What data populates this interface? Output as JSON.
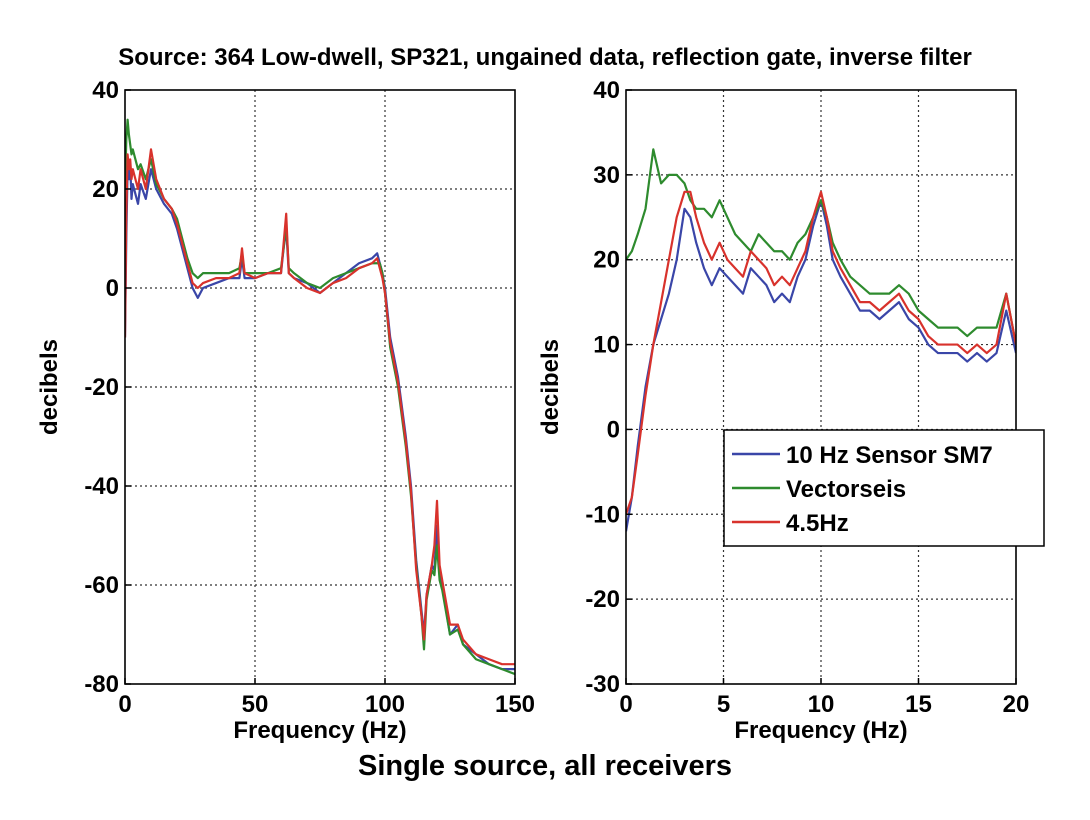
{
  "title": "Source: 364 Low-dwell, SP321, ungained data, reflection gate, inverse filter",
  "caption": "Single source, all receivers",
  "colors": {
    "10 Hz Sensor SM7": "#3a46a8",
    "Vectorseis": "#2e8b2e",
    "4.5Hz": "#d8322c"
  },
  "chart_data": [
    {
      "type": "line",
      "xlabel": "Frequency (Hz)",
      "ylabel": "decibels",
      "xlim": [
        0,
        150
      ],
      "ylim": [
        -80,
        40
      ],
      "xticks": [
        0,
        50,
        100,
        150
      ],
      "yticks": [
        -80,
        -60,
        -40,
        -20,
        0,
        20,
        40
      ],
      "grid": true,
      "series": [
        {
          "name": "10 Hz Sensor SM7",
          "x": [
            0,
            0.5,
            1,
            1.5,
            2,
            2.5,
            3,
            4,
            5,
            6,
            8,
            10,
            12,
            15,
            18,
            20,
            22,
            24,
            26,
            28,
            30,
            35,
            40,
            44,
            45,
            46,
            50,
            55,
            60,
            61,
            62,
            63,
            65,
            70,
            75,
            80,
            85,
            90,
            95,
            97,
            98,
            99,
            100,
            102,
            105,
            108,
            110,
            112,
            114,
            115,
            116,
            118,
            119,
            120,
            121,
            122,
            125,
            128,
            130,
            135,
            140,
            145,
            150
          ],
          "y": [
            -10,
            10,
            24,
            22,
            25,
            18,
            21,
            19,
            17,
            21,
            18,
            24,
            20,
            17,
            15,
            12,
            8,
            4,
            0,
            -2,
            0,
            1,
            2,
            2,
            6,
            2,
            2,
            3,
            3,
            8,
            12,
            3,
            2,
            1,
            -1,
            1,
            3,
            5,
            6,
            7,
            5,
            3,
            0,
            -10,
            -18,
            -30,
            -40,
            -55,
            -65,
            -70,
            -62,
            -56,
            -57,
            -48,
            -58,
            -60,
            -70,
            -68,
            -72,
            -74,
            -76,
            -77,
            -77
          ]
        },
        {
          "name": "Vectorseis",
          "x": [
            0,
            0.5,
            1,
            1.5,
            2,
            2.5,
            3,
            4,
            5,
            6,
            8,
            10,
            12,
            15,
            18,
            20,
            22,
            24,
            26,
            28,
            30,
            35,
            40,
            44,
            45,
            46,
            50,
            55,
            60,
            61,
            62,
            63,
            65,
            70,
            75,
            80,
            85,
            90,
            95,
            97,
            98,
            99,
            100,
            102,
            105,
            108,
            110,
            112,
            114,
            115,
            116,
            118,
            119,
            120,
            121,
            122,
            125,
            128,
            130,
            135,
            140,
            145,
            150
          ],
          "y": [
            20,
            30,
            34,
            31,
            29,
            27,
            28,
            26,
            24,
            25,
            22,
            26,
            21,
            18,
            16,
            14,
            10,
            6,
            3,
            2,
            3,
            3,
            3,
            4,
            7,
            3,
            3,
            3,
            4,
            8,
            13,
            4,
            3,
            1,
            0,
            2,
            3,
            4,
            5,
            5,
            5,
            3,
            -1,
            -12,
            -20,
            -32,
            -42,
            -56,
            -66,
            -73,
            -63,
            -57,
            -58,
            -52,
            -59,
            -61,
            -70,
            -69,
            -72,
            -75,
            -76,
            -77,
            -78
          ]
        },
        {
          "name": "4.5Hz",
          "x": [
            0,
            0.5,
            1,
            1.5,
            2,
            2.5,
            3,
            4,
            5,
            6,
            8,
            10,
            12,
            15,
            18,
            20,
            22,
            24,
            26,
            28,
            30,
            35,
            40,
            44,
            45,
            46,
            50,
            55,
            60,
            61,
            62,
            63,
            65,
            70,
            75,
            80,
            85,
            90,
            95,
            97,
            98,
            99,
            100,
            102,
            105,
            108,
            110,
            112,
            114,
            115,
            116,
            118,
            119,
            120,
            121,
            122,
            125,
            128,
            130,
            135,
            140,
            145,
            150
          ],
          "y": [
            -10,
            15,
            27,
            24,
            26,
            22,
            24,
            22,
            20,
            24,
            20,
            28,
            22,
            18,
            16,
            13,
            9,
            5,
            1,
            0,
            1,
            2,
            2,
            3,
            8,
            3,
            2,
            3,
            3,
            9,
            15,
            3,
            2,
            0,
            -1,
            1,
            2,
            4,
            5,
            6,
            4,
            2,
            -1,
            -11,
            -19,
            -31,
            -41,
            -57,
            -66,
            -71,
            -62,
            -56,
            -52,
            -43,
            -56,
            -59,
            -68,
            -68,
            -71,
            -74,
            -75,
            -76,
            -76
          ]
        }
      ]
    },
    {
      "type": "line",
      "xlabel": "Frequency (Hz)",
      "ylabel": "decibels",
      "xlim": [
        0,
        20
      ],
      "ylim": [
        -30,
        40
      ],
      "xticks": [
        0,
        5,
        10,
        15,
        20
      ],
      "yticks": [
        -30,
        -20,
        -10,
        0,
        10,
        20,
        30,
        40
      ],
      "grid": true,
      "legend": {
        "position": "lower-right",
        "entries": [
          "10 Hz Sensor SM7",
          "Vectorseis",
          "4.5Hz"
        ]
      },
      "series": [
        {
          "name": "10 Hz Sensor SM7",
          "x": [
            0,
            0.3,
            0.6,
            1,
            1.4,
            1.8,
            2.2,
            2.6,
            3,
            3.3,
            3.6,
            4,
            4.4,
            4.8,
            5.2,
            5.6,
            6,
            6.4,
            6.8,
            7.2,
            7.6,
            8,
            8.4,
            8.8,
            9.2,
            9.6,
            10,
            10.3,
            10.6,
            11,
            11.5,
            12,
            12.5,
            13,
            13.5,
            14,
            14.5,
            15,
            15.5,
            16,
            16.5,
            17,
            17.5,
            18,
            18.5,
            19,
            19.5,
            20
          ],
          "y": [
            -12,
            -8,
            -2,
            5,
            10,
            13,
            16,
            20,
            26,
            25,
            22,
            19,
            17,
            19,
            18,
            17,
            16,
            19,
            18,
            17,
            15,
            16,
            15,
            18,
            20,
            24,
            27,
            24,
            20,
            18,
            16,
            14,
            14,
            13,
            14,
            15,
            13,
            12,
            10,
            9,
            9,
            9,
            8,
            9,
            8,
            9,
            14,
            9
          ]
        },
        {
          "name": "Vectorseis",
          "x": [
            0,
            0.3,
            0.6,
            1,
            1.4,
            1.8,
            2.2,
            2.6,
            3,
            3.3,
            3.6,
            4,
            4.4,
            4.8,
            5.2,
            5.6,
            6,
            6.4,
            6.8,
            7.2,
            7.6,
            8,
            8.4,
            8.8,
            9.2,
            9.6,
            10,
            10.3,
            10.6,
            11,
            11.5,
            12,
            12.5,
            13,
            13.5,
            14,
            14.5,
            15,
            15.5,
            16,
            16.5,
            17,
            17.5,
            18,
            18.5,
            19,
            19.5,
            20
          ],
          "y": [
            20,
            21,
            23,
            26,
            33,
            29,
            30,
            30,
            29,
            27,
            26,
            26,
            25,
            27,
            25,
            23,
            22,
            21,
            23,
            22,
            21,
            21,
            20,
            22,
            23,
            25,
            27,
            25,
            22,
            20,
            18,
            17,
            16,
            16,
            16,
            17,
            16,
            14,
            13,
            12,
            12,
            12,
            11,
            12,
            12,
            12,
            16,
            10
          ]
        },
        {
          "name": "4.5Hz",
          "x": [
            0,
            0.3,
            0.6,
            1,
            1.4,
            1.8,
            2.2,
            2.6,
            3,
            3.3,
            3.6,
            4,
            4.4,
            4.8,
            5.2,
            5.6,
            6,
            6.4,
            6.8,
            7.2,
            7.6,
            8,
            8.4,
            8.8,
            9.2,
            9.6,
            10,
            10.3,
            10.6,
            11,
            11.5,
            12,
            12.5,
            13,
            13.5,
            14,
            14.5,
            15,
            15.5,
            16,
            16.5,
            17,
            17.5,
            18,
            18.5,
            19,
            19.5,
            20
          ],
          "y": [
            -10,
            -8,
            -3,
            4,
            10,
            15,
            20,
            25,
            28,
            28,
            25,
            22,
            20,
            22,
            20,
            19,
            18,
            21,
            20,
            19,
            17,
            18,
            17,
            19,
            21,
            25,
            28,
            25,
            21,
            19,
            17,
            15,
            15,
            14,
            15,
            16,
            14,
            13,
            11,
            10,
            10,
            10,
            9,
            10,
            9,
            10,
            16,
            10
          ]
        }
      ]
    }
  ]
}
